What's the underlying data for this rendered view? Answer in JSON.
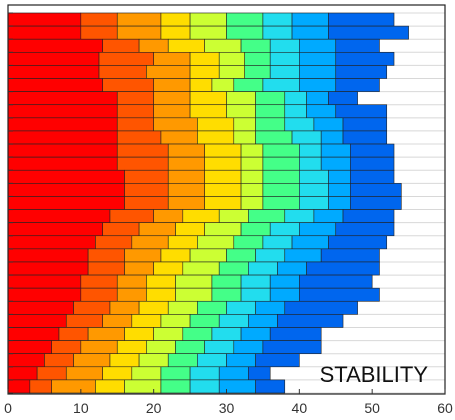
{
  "chart_data": {
    "type": "bar",
    "orientation": "horizontal",
    "stacked": true,
    "annotation": "STABILITY",
    "x_ticks": [
      "0",
      "10",
      "20",
      "30",
      "40",
      "50",
      "60"
    ],
    "xlim": [
      0,
      60
    ],
    "grid": "horizontal lines at bar boundaries",
    "colors": [
      "#ff0000",
      "#ff5500",
      "#ff9900",
      "#ffdd00",
      "#ccff33",
      "#44ff88",
      "#22ddee",
      "#00aaff",
      "#0066ee",
      "#0000ff"
    ],
    "bars": [
      [
        10,
        15,
        21,
        25,
        30,
        35,
        39,
        44,
        53
      ],
      [
        10,
        15,
        21,
        25,
        30,
        35,
        39,
        44,
        55
      ],
      [
        13,
        18,
        22,
        27,
        32,
        36,
        40,
        45,
        51
      ],
      [
        12.5,
        20,
        25,
        29,
        32.5,
        36,
        40,
        45,
        53
      ],
      [
        12.5,
        19,
        25,
        29,
        32.5,
        36,
        40,
        45,
        52
      ],
      [
        13,
        20,
        25,
        28,
        31,
        35,
        40,
        45,
        51
      ],
      [
        15,
        20,
        25,
        30,
        34,
        38,
        41,
        44,
        48
      ],
      [
        15,
        20,
        25,
        30,
        34,
        38,
        41,
        45,
        52
      ],
      [
        15,
        20,
        26,
        31,
        34,
        38,
        42,
        46,
        52
      ],
      [
        15,
        21,
        26,
        31,
        34,
        39,
        43,
        46,
        52
      ],
      [
        15,
        22,
        27,
        32,
        35,
        40,
        43,
        47,
        53
      ],
      [
        15,
        22,
        27,
        32,
        35,
        40,
        43,
        47,
        53
      ],
      [
        16,
        22,
        27,
        32,
        35,
        40,
        44,
        47,
        53
      ],
      [
        16,
        22,
        27,
        32,
        35,
        40,
        44,
        47,
        54
      ],
      [
        16,
        22,
        27,
        32,
        35,
        40,
        44,
        47,
        54
      ],
      [
        14,
        20,
        24,
        29,
        33,
        38,
        42,
        46,
        53
      ],
      [
        13,
        18,
        23,
        27,
        32,
        36,
        40,
        45,
        53
      ],
      [
        12,
        17,
        22,
        26,
        31,
        35,
        39,
        44,
        52
      ],
      [
        11,
        16,
        21,
        25,
        30,
        34,
        38,
        43,
        51
      ],
      [
        11,
        16,
        20,
        24,
        29,
        33,
        37,
        41,
        51
      ],
      [
        10,
        15,
        19,
        23,
        28,
        32,
        36,
        40,
        50
      ],
      [
        10,
        15,
        19,
        23,
        28,
        32,
        36,
        40,
        51
      ],
      [
        9,
        14,
        18,
        22,
        26,
        30,
        34,
        38,
        48
      ],
      [
        8,
        13,
        17,
        21,
        25,
        29,
        33,
        37,
        46
      ],
      [
        7,
        11,
        16,
        20,
        24,
        28,
        32,
        36,
        43
      ],
      [
        6,
        10,
        15,
        19,
        23,
        27,
        31,
        35,
        43
      ],
      [
        5,
        9,
        14,
        18,
        22,
        26,
        30,
        34,
        40
      ],
      [
        4,
        8,
        13,
        17,
        21,
        25,
        29,
        33,
        36
      ],
      [
        3,
        6,
        12,
        16,
        21,
        25,
        29,
        34,
        38
      ]
    ]
  }
}
